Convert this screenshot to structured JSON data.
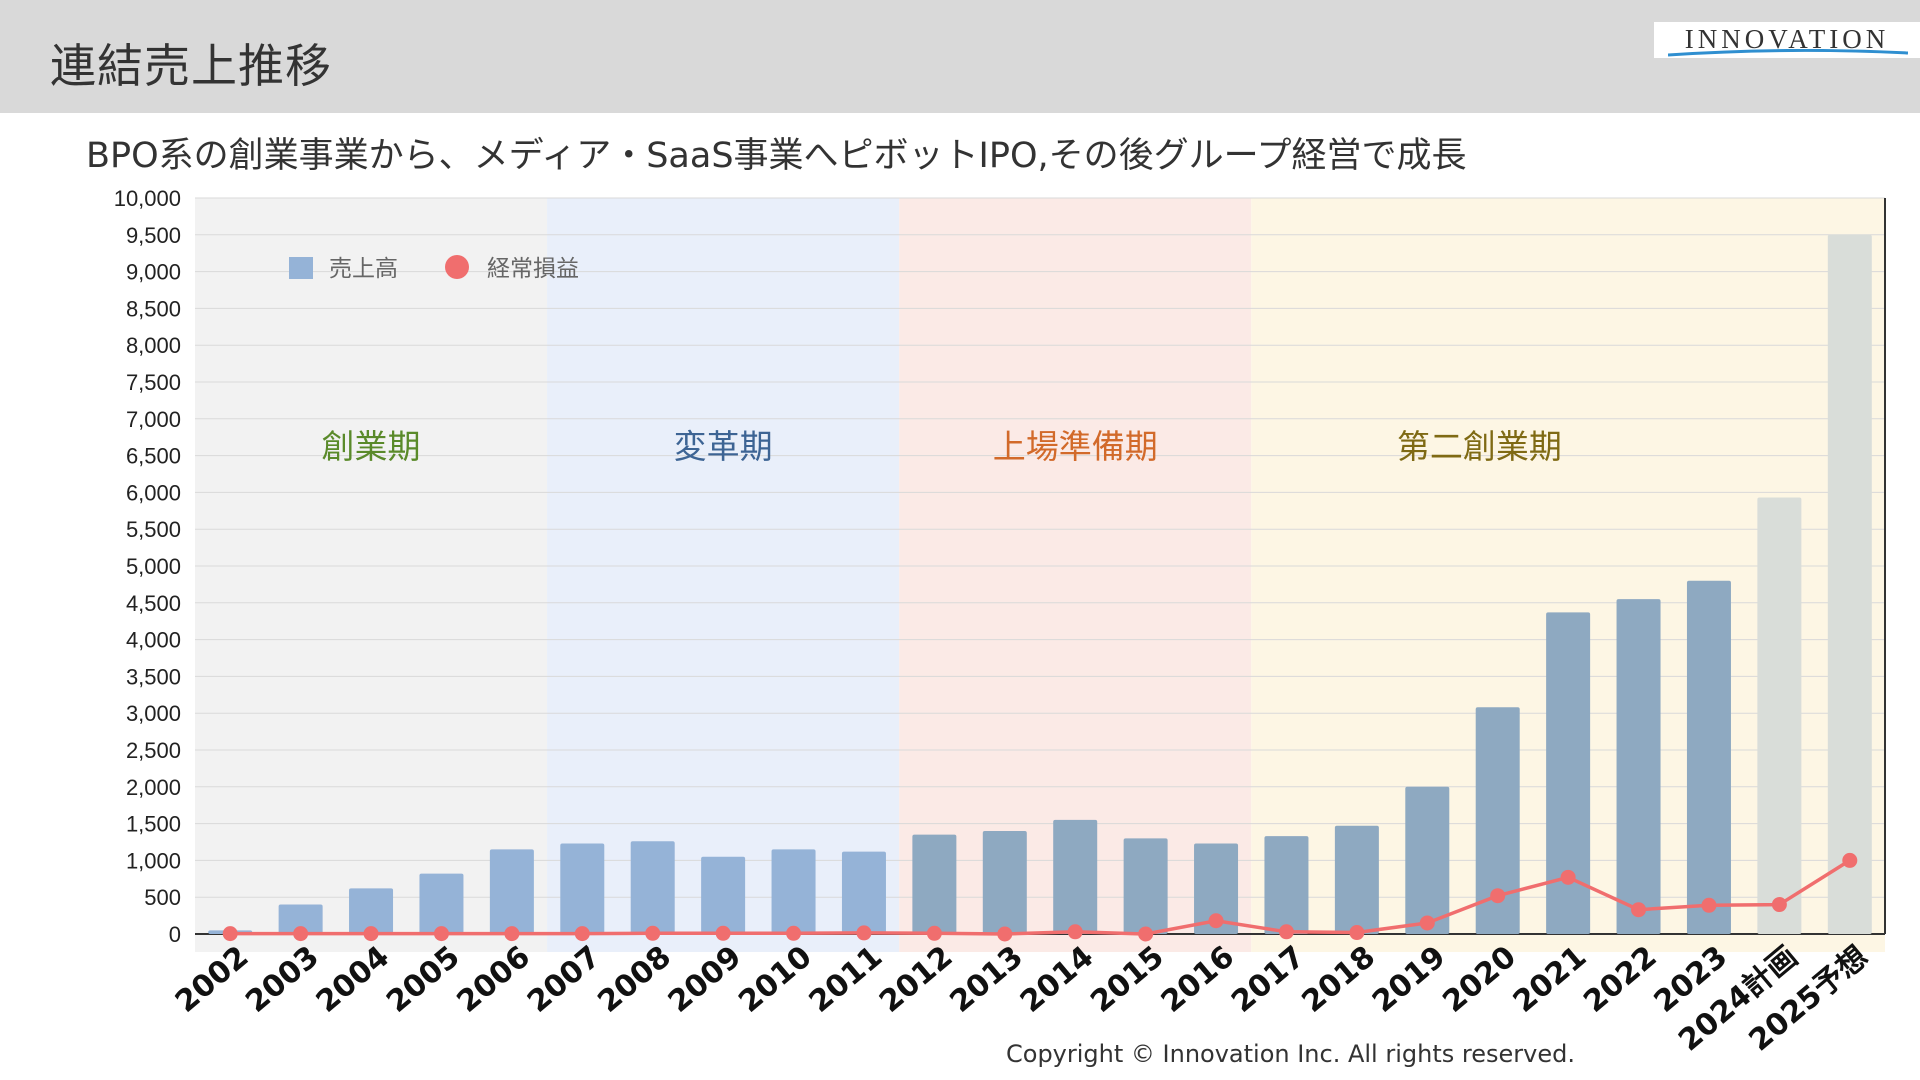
{
  "header": {
    "title": "連結売上推移",
    "logo_text": "INNOVATION"
  },
  "subtitle": "BPO系の創業事業から、メディア・SaaS事業へピボットIPO,その後グループ経営で成長",
  "footer": {
    "copyright": "Copyright ©  Innovation Inc. All rights reserved."
  },
  "colors": {
    "bar_actual_early": "#95b3d7",
    "bar_actual_late": "#8ea9c1",
    "bar_forecast": "#d9ddd9",
    "line": "#f06e6e",
    "grid": "#d9d9d9",
    "phase_founding": "#f2f2f2",
    "phase_transformation": "#e9effa",
    "phase_ipo_prep": "#fbeae6",
    "phase_second_founding": "#fdf6e4"
  },
  "chart_data": {
    "type": "bar",
    "categories": [
      "2002",
      "2003",
      "2004",
      "2005",
      "2006",
      "2007",
      "2008",
      "2009",
      "2010",
      "2011",
      "2012",
      "2013",
      "2014",
      "2015",
      "2016",
      "2017",
      "2018",
      "2019",
      "2020",
      "2021",
      "2022",
      "2023",
      "2024計画",
      "2025予想"
    ],
    "series": [
      {
        "name": "売上高",
        "type": "bar",
        "values": [
          50,
          400,
          620,
          820,
          1150,
          1230,
          1260,
          1050,
          1150,
          1120,
          1350,
          1400,
          1550,
          1300,
          1230,
          1330,
          1470,
          2000,
          3080,
          4370,
          4550,
          4800,
          5930,
          9500
        ]
      },
      {
        "name": "経常損益",
        "type": "line",
        "values": [
          5,
          5,
          5,
          5,
          5,
          5,
          10,
          10,
          10,
          15,
          10,
          0,
          30,
          0,
          180,
          30,
          20,
          150,
          520,
          770,
          330,
          390,
          400,
          1000
        ]
      }
    ],
    "forecast_categories": [
      "2024計画",
      "2025予想"
    ],
    "phases": [
      {
        "label": "創業期",
        "from": "2002",
        "to": "2006",
        "label_color": "#5a8a2a"
      },
      {
        "label": "変革期",
        "from": "2007",
        "to": "2011",
        "label_color": "#3d6494"
      },
      {
        "label": "上場準備期",
        "from": "2012",
        "to": "2016",
        "label_color": "#d26a2a"
      },
      {
        "label": "第二創業期",
        "from": "2017",
        "to": "2025予想",
        "label_color": "#7f6a14"
      }
    ],
    "ylim": [
      0,
      10000
    ],
    "ytick_step": 500,
    "ytick_labels": [
      "0",
      "500",
      "1,000",
      "1,500",
      "2,000",
      "2,500",
      "3,000",
      "3,500",
      "4,000",
      "4,500",
      "5,000",
      "5,500",
      "6,000",
      "6,500",
      "7,000",
      "7,500",
      "8,000",
      "8,500",
      "9,000",
      "9,500",
      "10,000"
    ],
    "grid": true,
    "legend_position": "top-left",
    "title": "",
    "xlabel": "",
    "ylabel": ""
  }
}
